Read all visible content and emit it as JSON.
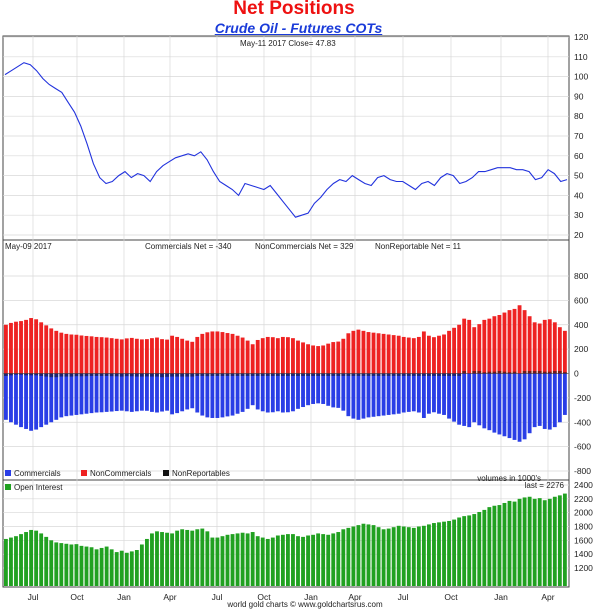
{
  "header": {
    "title": "Net Positions",
    "subtitle": "Crude Oil - Futures COTs"
  },
  "colors": {
    "price": "#2233dd",
    "commercials": "#2a3ee6",
    "noncommercials": "#ee2222",
    "nonreportables": "#111111",
    "open_interest": "#21a121"
  },
  "footer": "world gold charts © www.goldchartsrus.com",
  "chart_data": [
    {
      "type": "line",
      "panel": "price",
      "info": "May-11  2017   Close= 47.83",
      "x_labels": [
        "Jul",
        "Oct",
        "Jan",
        "Apr",
        "Jul",
        "Oct",
        "Jan",
        "Apr",
        "Jul",
        "Oct",
        "Jan",
        "Apr"
      ],
      "ylim": [
        20,
        120
      ],
      "yticks": [
        20,
        30,
        40,
        50,
        60,
        70,
        80,
        90,
        100,
        110,
        120
      ],
      "series": [
        {
          "values": [
            101,
            103,
            105,
            107,
            106,
            103,
            99,
            96,
            94,
            92,
            87,
            82,
            75,
            66,
            56,
            49,
            46,
            47,
            50,
            52,
            49,
            51,
            50,
            47,
            52,
            55,
            57,
            59,
            60,
            61,
            60,
            62,
            58,
            52,
            47,
            45,
            43,
            40,
            46,
            45,
            44,
            43,
            45,
            41,
            37,
            33,
            29,
            30,
            31,
            36,
            39,
            43,
            46,
            48,
            47,
            50,
            48,
            46,
            45,
            49,
            50,
            48,
            47,
            47,
            45,
            43,
            46,
            47,
            45,
            49,
            51,
            50,
            46,
            47,
            49,
            52,
            52,
            53,
            54,
            54,
            54,
            53,
            53,
            52,
            48,
            49,
            53,
            51,
            47,
            48
          ]
        }
      ]
    },
    {
      "type": "bar",
      "panel": "net_positions",
      "info": "May-09  2017",
      "labels": {
        "commercials": "Commercials Net = -340",
        "noncommercials": "NonCommercials Net = 329",
        "nonreportables": "NonReportable Net = 11"
      },
      "legend": [
        "Commercials",
        "NonCommercials",
        "NonReportables"
      ],
      "units": "volumes in 1000's",
      "ylim": [
        -800,
        800
      ],
      "yticks": [
        -800,
        -600,
        -400,
        -200,
        0,
        200,
        400,
        600,
        800
      ],
      "series": [
        {
          "name": "NonCommercials",
          "values": [
            400,
            415,
            425,
            430,
            440,
            455,
            445,
            420,
            395,
            370,
            350,
            335,
            325,
            320,
            318,
            312,
            308,
            305,
            300,
            298,
            295,
            290,
            285,
            280,
            288,
            292,
            285,
            280,
            282,
            290,
            295,
            282,
            278,
            310,
            300,
            285,
            270,
            260,
            300,
            325,
            338,
            345,
            345,
            340,
            332,
            325,
            310,
            295,
            270,
            240,
            275,
            290,
            300,
            298,
            290,
            300,
            298,
            290,
            270,
            255,
            240,
            230,
            225,
            230,
            245,
            258,
            262,
            285,
            330,
            350,
            360,
            350,
            340,
            335,
            330,
            325,
            320,
            315,
            310,
            300,
            295,
            290,
            300,
            345,
            310,
            298,
            310,
            320,
            350,
            375,
            400,
            450,
            440,
            380,
            405,
            440,
            450,
            470,
            480,
            500,
            520,
            530,
            560,
            520,
            470,
            420,
            410,
            440,
            445,
            420,
            380,
            350
          ]
        },
        {
          "name": "Commercials",
          "values": [
            -380,
            -400,
            -420,
            -440,
            -455,
            -470,
            -460,
            -440,
            -420,
            -400,
            -380,
            -360,
            -350,
            -345,
            -340,
            -335,
            -330,
            -325,
            -320,
            -318,
            -315,
            -312,
            -308,
            -305,
            -310,
            -315,
            -310,
            -305,
            -306,
            -315,
            -320,
            -312,
            -305,
            -335,
            -325,
            -310,
            -295,
            -285,
            -320,
            -345,
            -360,
            -365,
            -365,
            -360,
            -352,
            -345,
            -330,
            -315,
            -290,
            -260,
            -295,
            -310,
            -320,
            -318,
            -310,
            -320,
            -318,
            -310,
            -290,
            -275,
            -260,
            -250,
            -245,
            -250,
            -265,
            -278,
            -282,
            -305,
            -350,
            -370,
            -380,
            -370,
            -360,
            -355,
            -350,
            -345,
            -340,
            -335,
            -330,
            -320,
            -315,
            -310,
            -320,
            -365,
            -330,
            -318,
            -330,
            -340,
            -370,
            -395,
            -420,
            -430,
            -440,
            -400,
            -425,
            -450,
            -465,
            -485,
            -500,
            -515,
            -530,
            -545,
            -560,
            -540,
            -490,
            -440,
            -430,
            -455,
            -460,
            -440,
            -400,
            -340
          ]
        },
        {
          "name": "NonReportables",
          "values": [
            -20,
            -15,
            -10,
            -10,
            -15,
            -15,
            -15,
            -20,
            -25,
            -30,
            -30,
            -25,
            -25,
            -25,
            -22,
            -23,
            -22,
            -20,
            -20,
            -20,
            -20,
            -22,
            -23,
            -25,
            -22,
            -23,
            -25,
            -25,
            -24,
            -25,
            -25,
            -30,
            -27,
            -25,
            -25,
            -25,
            -25,
            -25,
            -20,
            -20,
            -22,
            -20,
            -20,
            -20,
            -20,
            -20,
            -20,
            -20,
            -20,
            -20,
            -20,
            -20,
            -20,
            -20,
            -20,
            -20,
            -20,
            -20,
            -20,
            -20,
            -20,
            -20,
            -20,
            -20,
            -20,
            -20,
            -20,
            -20,
            -20,
            -20,
            -20,
            -20,
            -20,
            -20,
            -20,
            -20,
            -20,
            -20,
            -20,
            -20,
            -20,
            -20,
            -20,
            -20,
            -20,
            -20,
            -20,
            -20,
            -20,
            -20,
            -20,
            20,
            0,
            20,
            20,
            10,
            15,
            15,
            20,
            15,
            10,
            15,
            0,
            20,
            20,
            20,
            20,
            15,
            15,
            20,
            20,
            11
          ]
        }
      ]
    },
    {
      "type": "bar",
      "panel": "open_interest",
      "legend": [
        "Open Interest"
      ],
      "last": "last = 2276",
      "ylim": [
        1200,
        2400
      ],
      "yticks": [
        1200,
        1400,
        1600,
        1800,
        2000,
        2200,
        2400
      ],
      "series": [
        {
          "name": "Open Interest",
          "values": [
            1620,
            1640,
            1660,
            1690,
            1720,
            1750,
            1740,
            1700,
            1650,
            1600,
            1570,
            1560,
            1550,
            1540,
            1545,
            1520,
            1510,
            1500,
            1470,
            1490,
            1510,
            1470,
            1430,
            1450,
            1420,
            1440,
            1460,
            1540,
            1620,
            1700,
            1730,
            1720,
            1710,
            1700,
            1740,
            1760,
            1750,
            1740,
            1760,
            1770,
            1730,
            1640,
            1640,
            1660,
            1680,
            1690,
            1700,
            1710,
            1700,
            1720,
            1660,
            1640,
            1620,
            1640,
            1670,
            1680,
            1690,
            1690,
            1660,
            1650,
            1670,
            1680,
            1700,
            1690,
            1680,
            1700,
            1720,
            1760,
            1780,
            1800,
            1820,
            1840,
            1830,
            1820,
            1790,
            1760,
            1770,
            1790,
            1810,
            1800,
            1790,
            1780,
            1800,
            1810,
            1830,
            1850,
            1860,
            1870,
            1880,
            1900,
            1930,
            1950,
            1960,
            1980,
            2010,
            2040,
            2080,
            2100,
            2110,
            2140,
            2170,
            2160,
            2200,
            2220,
            2230,
            2200,
            2210,
            2180,
            2200,
            2230,
            2250,
            2276
          ]
        }
      ]
    }
  ]
}
